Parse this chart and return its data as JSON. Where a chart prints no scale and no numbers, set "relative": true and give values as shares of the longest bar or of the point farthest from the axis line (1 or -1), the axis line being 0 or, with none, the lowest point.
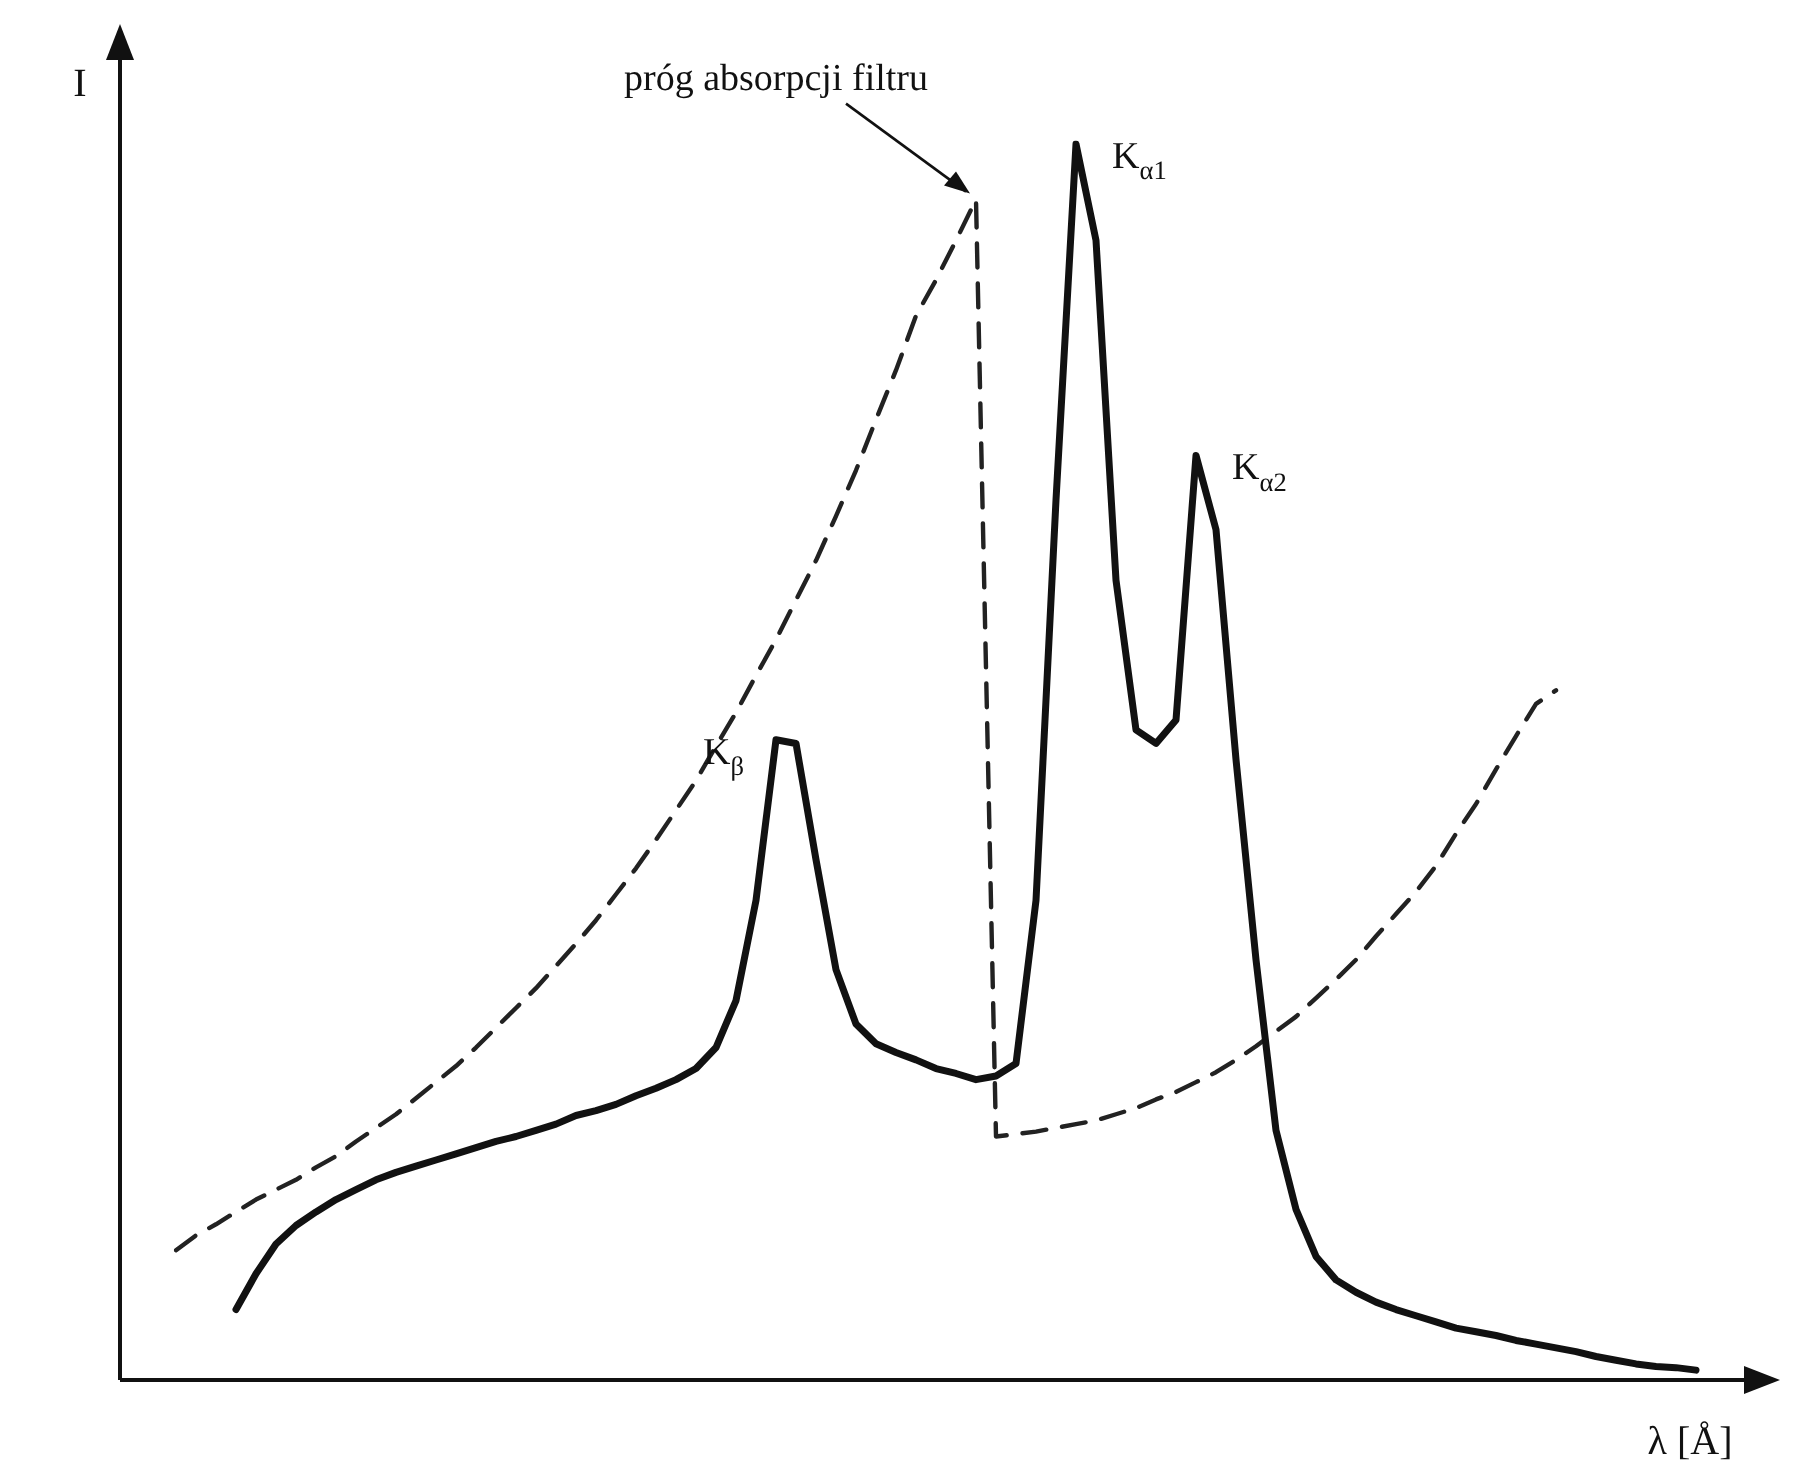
{
  "chart_data": {
    "type": "line",
    "relative": true,
    "xlabel": "λ [Å]",
    "ylabel": "I",
    "legend": false,
    "marker": "none",
    "categories": [
      null,
      null,
      null,
      null,
      null,
      null,
      null,
      null,
      null,
      null,
      null,
      null,
      null,
      null,
      null,
      null,
      null,
      null,
      null,
      null,
      null,
      null,
      null,
      null,
      null,
      null,
      null,
      null,
      null,
      null,
      null,
      null,
      null,
      null,
      null,
      null,
      null,
      null,
      null,
      null,
      null,
      null,
      null,
      null,
      null,
      null,
      null,
      null,
      null,
      null,
      null,
      null,
      null,
      null,
      null,
      null,
      null,
      null,
      null,
      null,
      null,
      null,
      null,
      null,
      null,
      null,
      null,
      null,
      null,
      null,
      null,
      null,
      null,
      null,
      null,
      null,
      null,
      null,
      null
    ],
    "series": [
      {
        "color": "#111111",
        "line_style": "solid",
        "values": [
          null,
          null,
          null,
          0.057,
          0.086,
          0.11,
          0.125,
          0.136,
          0.146,
          0.154,
          0.162,
          0.168,
          0.173,
          0.178,
          0.183,
          0.188,
          0.193,
          0.197,
          0.202,
          0.207,
          0.214,
          0.218,
          0.223,
          0.23,
          0.236,
          0.243,
          0.252,
          0.269,
          0.307,
          0.388,
          0.518,
          0.515,
          0.421,
          0.332,
          0.288,
          0.272,
          0.265,
          0.259,
          0.252,
          0.248,
          0.243,
          0.246,
          0.256,
          0.388,
          0.712,
          1.0,
          0.922,
          0.647,
          0.526,
          0.515,
          0.534,
          0.748,
          0.688,
          0.502,
          0.34,
          0.202,
          0.138,
          0.1,
          0.081,
          0.071,
          0.063,
          0.057,
          0.052,
          0.047,
          0.042,
          0.039,
          0.036,
          0.032,
          0.029,
          0.026,
          0.023,
          0.019,
          0.016,
          0.013,
          0.011,
          0.01,
          0.008,
          null,
          null
        ]
      },
      {
        "color": "#222222",
        "line_style": "dashed",
        "values": [
          0.105,
          0.117,
          0.126,
          0.136,
          0.146,
          0.154,
          0.162,
          0.172,
          0.181,
          0.193,
          0.204,
          0.215,
          0.228,
          0.241,
          0.254,
          0.269,
          0.285,
          0.301,
          0.317,
          0.335,
          0.353,
          0.372,
          0.393,
          0.414,
          0.437,
          0.461,
          0.485,
          0.513,
          0.54,
          0.57,
          0.599,
          0.631,
          0.663,
          0.699,
          0.736,
          0.777,
          0.817,
          0.861,
          0.89,
          0.922,
          0.955,
          0.197,
          0.199,
          0.201,
          0.204,
          0.207,
          0.21,
          0.215,
          0.22,
          0.227,
          0.233,
          0.241,
          0.249,
          0.259,
          0.27,
          0.282,
          0.294,
          0.309,
          0.324,
          0.34,
          0.359,
          0.377,
          0.395,
          0.416,
          0.442,
          0.466,
          0.494,
          0.521,
          0.547,
          0.558,
          null,
          null,
          null,
          null,
          null,
          null,
          null,
          null,
          null
        ]
      }
    ],
    "annotations": [
      "próg absorpcji filtru",
      "K$_{α1}$",
      "K$_{α2}$",
      "K$_{β}$"
    ]
  }
}
